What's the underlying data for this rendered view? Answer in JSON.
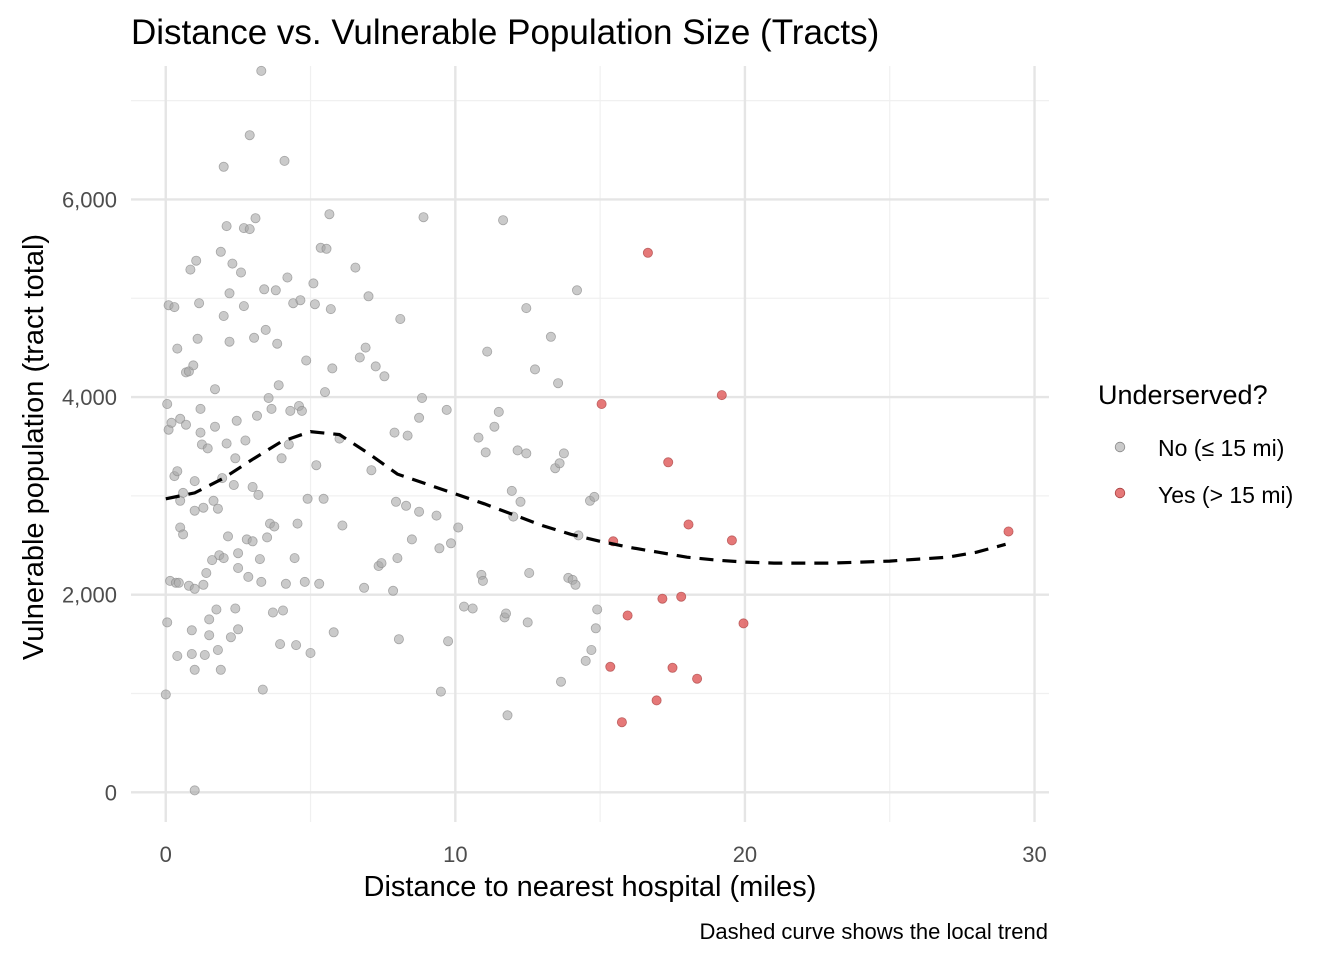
{
  "chart_data": {
    "type": "scatter",
    "title": "Distance vs. Vulnerable Population Size (Tracts)",
    "xlabel": "Distance to nearest hospital (miles)",
    "ylabel": "Vulnerable population (tract total)",
    "caption": "Dashed curve shows the local trend",
    "xlim": [
      -1.2,
      30.5
    ],
    "ylim": [
      -300,
      7350
    ],
    "x_ticks": [
      0,
      10,
      20,
      30
    ],
    "x_tick_labels": [
      "0",
      "10",
      "20",
      "30"
    ],
    "y_ticks": [
      0,
      2000,
      4000,
      6000
    ],
    "y_tick_labels": [
      "0",
      "2,000",
      "4,000",
      "6,000"
    ],
    "grid": true,
    "legend": {
      "title": "Underserved?",
      "position": "right",
      "entries": [
        {
          "label": "No (≤ 15 mi)",
          "color": "#a6a6a6"
        },
        {
          "label": "Yes (> 15 mi)",
          "color": "#e06060"
        }
      ]
    },
    "series": [
      {
        "name": "No (≤ 15 mi)",
        "color": "#a6a6a6",
        "points": [
          [
            0,
            990
          ],
          [
            0.05,
            1720
          ],
          [
            0.05,
            3930
          ],
          [
            0.1,
            3670
          ],
          [
            0.1,
            4930
          ],
          [
            0.15,
            2140
          ],
          [
            0.2,
            3740
          ],
          [
            0.3,
            4910
          ],
          [
            0.3,
            3200
          ],
          [
            0.35,
            2120
          ],
          [
            0.4,
            1380
          ],
          [
            0.4,
            3250
          ],
          [
            0.4,
            4490
          ],
          [
            0.45,
            2120
          ],
          [
            0.5,
            2950
          ],
          [
            0.5,
            3780
          ],
          [
            0.5,
            2680
          ],
          [
            0.6,
            2610
          ],
          [
            0.6,
            3030
          ],
          [
            0.7,
            3720
          ],
          [
            0.7,
            4250
          ],
          [
            0.8,
            4260
          ],
          [
            0.8,
            2090
          ],
          [
            0.85,
            5290
          ],
          [
            0.9,
            1400
          ],
          [
            0.9,
            1640
          ],
          [
            0.95,
            4320
          ],
          [
            1.0,
            3150
          ],
          [
            1.0,
            2850
          ],
          [
            1.0,
            2060
          ],
          [
            1.0,
            1240
          ],
          [
            1.0,
            20
          ],
          [
            1.05,
            5380
          ],
          [
            1.1,
            4590
          ],
          [
            1.15,
            4950
          ],
          [
            1.2,
            3880
          ],
          [
            1.2,
            3640
          ],
          [
            1.25,
            3520
          ],
          [
            1.3,
            2880
          ],
          [
            1.3,
            2100
          ],
          [
            1.35,
            1390
          ],
          [
            1.4,
            2220
          ],
          [
            1.45,
            3480
          ],
          [
            1.5,
            1750
          ],
          [
            1.5,
            1590
          ],
          [
            1.6,
            2350
          ],
          [
            1.65,
            2950
          ],
          [
            1.7,
            4080
          ],
          [
            1.7,
            3700
          ],
          [
            1.75,
            1850
          ],
          [
            1.8,
            1440
          ],
          [
            1.8,
            2870
          ],
          [
            1.85,
            2400
          ],
          [
            1.9,
            5470
          ],
          [
            1.9,
            1240
          ],
          [
            1.95,
            3180
          ],
          [
            2.0,
            6330
          ],
          [
            2.0,
            4820
          ],
          [
            2.0,
            2370
          ],
          [
            2.1,
            5730
          ],
          [
            2.1,
            3530
          ],
          [
            2.15,
            2590
          ],
          [
            2.2,
            5050
          ],
          [
            2.2,
            4560
          ],
          [
            2.25,
            1570
          ],
          [
            2.3,
            5350
          ],
          [
            2.35,
            3110
          ],
          [
            2.4,
            1860
          ],
          [
            2.4,
            3380
          ],
          [
            2.45,
            3760
          ],
          [
            2.5,
            2420
          ],
          [
            2.5,
            2270
          ],
          [
            2.5,
            1650
          ],
          [
            2.6,
            5260
          ],
          [
            2.7,
            4920
          ],
          [
            2.7,
            5710
          ],
          [
            2.75,
            3560
          ],
          [
            2.8,
            2560
          ],
          [
            2.85,
            2180
          ],
          [
            2.9,
            6650
          ],
          [
            2.9,
            5700
          ],
          [
            3.0,
            3090
          ],
          [
            3.0,
            2540
          ],
          [
            3.05,
            4600
          ],
          [
            3.1,
            5810
          ],
          [
            3.15,
            3810
          ],
          [
            3.2,
            3010
          ],
          [
            3.25,
            2360
          ],
          [
            3.3,
            7300
          ],
          [
            3.3,
            2130
          ],
          [
            3.35,
            1040
          ],
          [
            3.4,
            5090
          ],
          [
            3.45,
            4680
          ],
          [
            3.5,
            2580
          ],
          [
            3.55,
            3990
          ],
          [
            3.6,
            2720
          ],
          [
            3.65,
            3880
          ],
          [
            3.7,
            1820
          ],
          [
            3.75,
            2690
          ],
          [
            3.8,
            5080
          ],
          [
            3.85,
            4540
          ],
          [
            3.9,
            4120
          ],
          [
            3.95,
            1500
          ],
          [
            4.0,
            3380
          ],
          [
            4.05,
            1840
          ],
          [
            4.1,
            6390
          ],
          [
            4.15,
            2110
          ],
          [
            4.2,
            5210
          ],
          [
            4.25,
            3520
          ],
          [
            4.3,
            3860
          ],
          [
            4.4,
            4950
          ],
          [
            4.45,
            2370
          ],
          [
            4.5,
            1490
          ],
          [
            4.55,
            2720
          ],
          [
            4.6,
            3910
          ],
          [
            4.65,
            4980
          ],
          [
            4.7,
            3860
          ],
          [
            4.8,
            2130
          ],
          [
            4.85,
            4370
          ],
          [
            4.9,
            2970
          ],
          [
            5.0,
            1410
          ],
          [
            5.1,
            5150
          ],
          [
            5.15,
            4940
          ],
          [
            5.2,
            3310
          ],
          [
            5.3,
            2110
          ],
          [
            5.35,
            5510
          ],
          [
            5.45,
            2970
          ],
          [
            5.5,
            4050
          ],
          [
            5.55,
            5500
          ],
          [
            5.65,
            5850
          ],
          [
            5.7,
            4890
          ],
          [
            5.75,
            4290
          ],
          [
            5.8,
            1620
          ],
          [
            6.0,
            3580
          ],
          [
            6.1,
            2700
          ],
          [
            6.55,
            5310
          ],
          [
            6.7,
            4400
          ],
          [
            6.85,
            2070
          ],
          [
            6.9,
            4500
          ],
          [
            7.0,
            5020
          ],
          [
            7.1,
            3260
          ],
          [
            7.25,
            4310
          ],
          [
            7.35,
            2290
          ],
          [
            7.45,
            2320
          ],
          [
            7.55,
            4210
          ],
          [
            7.85,
            2040
          ],
          [
            7.9,
            3640
          ],
          [
            7.95,
            2940
          ],
          [
            8.0,
            2370
          ],
          [
            8.05,
            1550
          ],
          [
            8.1,
            4790
          ],
          [
            8.3,
            2900
          ],
          [
            8.35,
            3610
          ],
          [
            8.5,
            2560
          ],
          [
            8.75,
            3790
          ],
          [
            8.75,
            2840
          ],
          [
            8.85,
            3990
          ],
          [
            8.9,
            5820
          ],
          [
            9.35,
            2800
          ],
          [
            9.45,
            2470
          ],
          [
            9.5,
            1020
          ],
          [
            9.7,
            3870
          ],
          [
            9.75,
            1530
          ],
          [
            9.85,
            2520
          ],
          [
            10.1,
            2680
          ],
          [
            10.3,
            1880
          ],
          [
            10.6,
            1860
          ],
          [
            10.8,
            3590
          ],
          [
            10.9,
            2200
          ],
          [
            10.95,
            2140
          ],
          [
            11.05,
            3440
          ],
          [
            11.1,
            4460
          ],
          [
            11.35,
            3700
          ],
          [
            11.5,
            3850
          ],
          [
            11.65,
            5790
          ],
          [
            11.7,
            1770
          ],
          [
            11.75,
            1810
          ],
          [
            11.8,
            780
          ],
          [
            11.95,
            3050
          ],
          [
            12.0,
            2790
          ],
          [
            12.15,
            3460
          ],
          [
            12.25,
            2940
          ],
          [
            12.45,
            4900
          ],
          [
            12.45,
            3430
          ],
          [
            12.5,
            1720
          ],
          [
            12.55,
            2220
          ],
          [
            12.75,
            4280
          ],
          [
            13.3,
            4610
          ],
          [
            13.45,
            3280
          ],
          [
            13.55,
            4140
          ],
          [
            13.6,
            3330
          ],
          [
            13.65,
            1120
          ],
          [
            13.75,
            3430
          ],
          [
            13.9,
            2170
          ],
          [
            14.05,
            2150
          ],
          [
            14.15,
            2100
          ],
          [
            14.2,
            5080
          ],
          [
            14.25,
            2600
          ],
          [
            14.5,
            1330
          ],
          [
            14.65,
            2950
          ],
          [
            14.7,
            1440
          ],
          [
            14.8,
            2990
          ],
          [
            14.85,
            1660
          ],
          [
            14.9,
            1850
          ]
        ]
      },
      {
        "name": "Yes (> 15 mi)",
        "color": "#e06060",
        "points": [
          [
            15.05,
            3930
          ],
          [
            15.35,
            1270
          ],
          [
            15.45,
            2540
          ],
          [
            15.75,
            710
          ],
          [
            15.95,
            1790
          ],
          [
            16.65,
            5460
          ],
          [
            16.95,
            930
          ],
          [
            17.15,
            1960
          ],
          [
            17.35,
            3340
          ],
          [
            17.5,
            1260
          ],
          [
            17.8,
            1980
          ],
          [
            18.05,
            2710
          ],
          [
            18.35,
            1150
          ],
          [
            19.2,
            4020
          ],
          [
            19.55,
            2550
          ],
          [
            19.95,
            1710
          ],
          [
            29.1,
            2640
          ]
        ]
      }
    ],
    "trend": {
      "style": "dashed",
      "color": "#000000",
      "points": [
        [
          0,
          2970
        ],
        [
          1,
          3030
        ],
        [
          2,
          3180
        ],
        [
          3,
          3370
        ],
        [
          4,
          3550
        ],
        [
          5,
          3650
        ],
        [
          6,
          3620
        ],
        [
          7,
          3430
        ],
        [
          8,
          3220
        ],
        [
          9,
          3120
        ],
        [
          10,
          3020
        ],
        [
          11,
          2920
        ],
        [
          12,
          2810
        ],
        [
          13,
          2700
        ],
        [
          14,
          2610
        ],
        [
          15,
          2540
        ],
        [
          16,
          2480
        ],
        [
          17,
          2430
        ],
        [
          18,
          2380
        ],
        [
          19,
          2350
        ],
        [
          20,
          2330
        ],
        [
          21,
          2320
        ],
        [
          22,
          2320
        ],
        [
          23,
          2320
        ],
        [
          24,
          2330
        ],
        [
          25,
          2340
        ],
        [
          26,
          2360
        ],
        [
          27,
          2380
        ],
        [
          28,
          2430
        ],
        [
          29,
          2510
        ]
      ]
    }
  }
}
